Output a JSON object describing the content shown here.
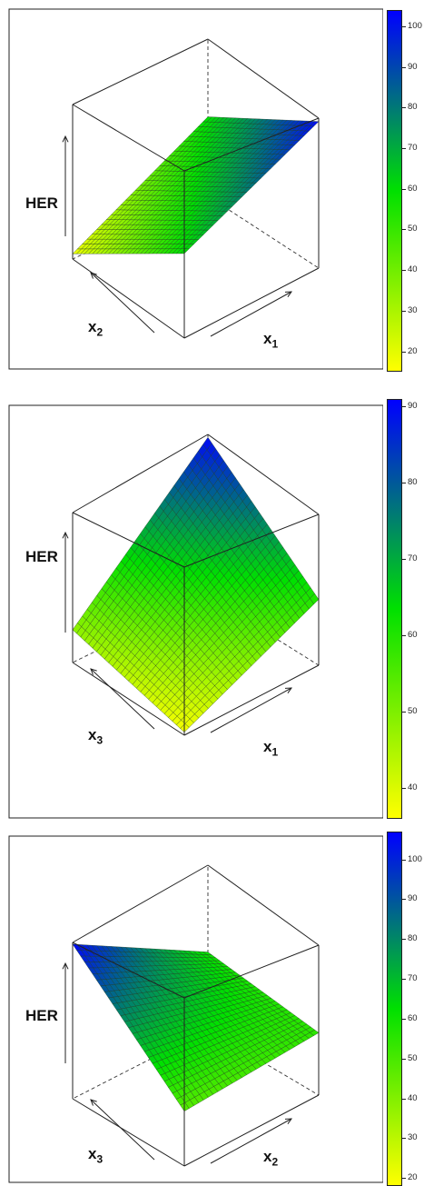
{
  "colors": {
    "surface_low": "#ffff00",
    "surface_mid": "#00e000",
    "surface_high": "#0000ff",
    "frame": "#222222",
    "mesh": "#1e3a1e"
  },
  "chart_data": [
    {
      "type": "surface3d",
      "zlabel": "HER",
      "xlabel": "x",
      "xlabel_sub": "2",
      "ylabel": "x",
      "ylabel_sub": "1",
      "corners": {
        "front_left": 18,
        "back_right": 102,
        "front_bottom": 60,
        "back_top": 60
      },
      "colorbar": {
        "min": 15,
        "max": 104,
        "ticks": [
          20,
          30,
          40,
          50,
          60,
          70,
          80,
          90,
          100
        ]
      }
    },
    {
      "type": "surface3d",
      "zlabel": "HER",
      "xlabel": "x",
      "xlabel_sub": "3",
      "ylabel": "x",
      "ylabel_sub": "1",
      "corners": {
        "front_left": 48,
        "back_right": 60,
        "front_bottom": 37,
        "back_top": 90
      },
      "colorbar": {
        "min": 36,
        "max": 91,
        "ticks": [
          40,
          50,
          60,
          70,
          80,
          90
        ]
      }
    },
    {
      "type": "surface3d",
      "zlabel": "HER",
      "xlabel": "x",
      "xlabel_sub": "3",
      "ylabel": "x",
      "ylabel_sub": "2",
      "corners": {
        "front_left": 106,
        "back_right": 55,
        "front_bottom": 47,
        "back_top": 60
      },
      "colorbar": {
        "min": 18,
        "max": 107,
        "ticks": [
          20,
          30,
          40,
          50,
          60,
          70,
          80,
          90,
          100
        ]
      }
    }
  ]
}
